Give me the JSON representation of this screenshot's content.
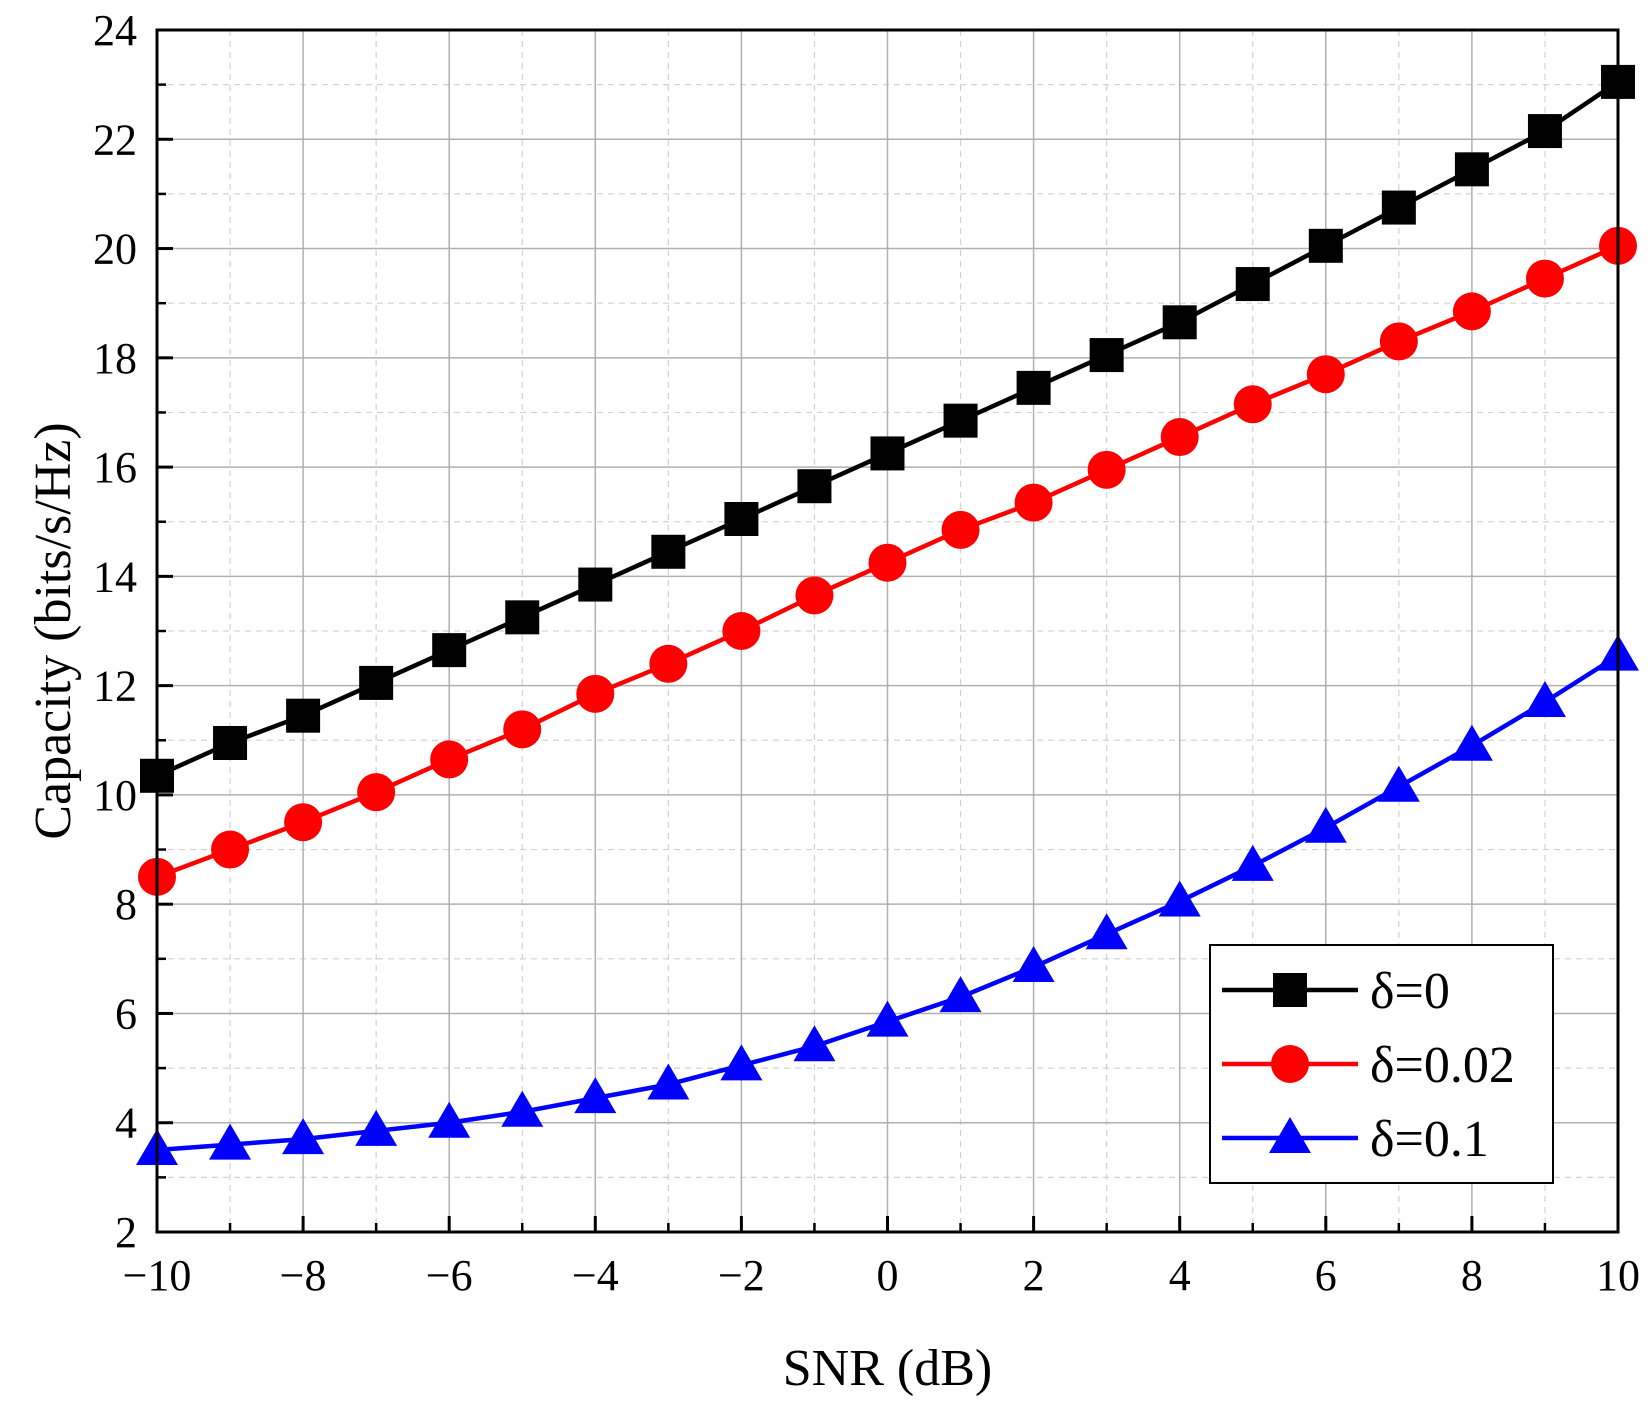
{
  "chart_data": {
    "type": "line",
    "title": "",
    "xlabel": "SNR (dB)",
    "ylabel": "Capacity (bits/s/Hz)",
    "xlim": [
      -10,
      10
    ],
    "ylim": [
      2,
      24
    ],
    "x_ticks": [
      -10,
      -8,
      -6,
      -4,
      -2,
      0,
      2,
      4,
      6,
      8,
      10
    ],
    "x_tick_labels": [
      "−10",
      "−8",
      "−6",
      "−4",
      "−2",
      "0",
      "2",
      "4",
      "6",
      "8",
      "10"
    ],
    "y_ticks": [
      2,
      4,
      6,
      8,
      10,
      12,
      14,
      16,
      18,
      20,
      22,
      24
    ],
    "y_tick_labels": [
      "2",
      "4",
      "6",
      "8",
      "10",
      "12",
      "14",
      "16",
      "18",
      "20",
      "22",
      "24"
    ],
    "grid": true,
    "legend_position": "bottom-right",
    "x": [
      -10,
      -9,
      -8,
      -7,
      -6,
      -5,
      -4,
      -3,
      -2,
      -1,
      0,
      1,
      2,
      3,
      4,
      5,
      6,
      7,
      8,
      9,
      10
    ],
    "series": [
      {
        "name": "δ=0",
        "color": "#000000",
        "marker": "square",
        "values": [
          10.35,
          10.95,
          11.45,
          12.05,
          12.65,
          13.25,
          13.85,
          14.45,
          15.05,
          15.65,
          16.25,
          16.85,
          17.45,
          18.05,
          18.65,
          19.35,
          20.05,
          20.75,
          21.45,
          22.15,
          23.05
        ]
      },
      {
        "name": "δ=0.02",
        "color": "#ff0000",
        "marker": "circle",
        "values": [
          8.5,
          9.0,
          9.5,
          10.05,
          10.65,
          11.2,
          11.85,
          12.4,
          13.0,
          13.65,
          14.25,
          14.85,
          15.35,
          15.95,
          16.55,
          17.15,
          17.7,
          18.3,
          18.85,
          19.45,
          20.05
        ]
      },
      {
        "name": "δ=0.1",
        "color": "#0000ff",
        "marker": "triangle",
        "values": [
          3.5,
          3.6,
          3.7,
          3.85,
          4.0,
          4.2,
          4.45,
          4.7,
          5.05,
          5.4,
          5.85,
          6.3,
          6.85,
          7.45,
          8.05,
          8.7,
          9.4,
          10.15,
          10.9,
          11.7,
          12.55
        ]
      }
    ]
  }
}
